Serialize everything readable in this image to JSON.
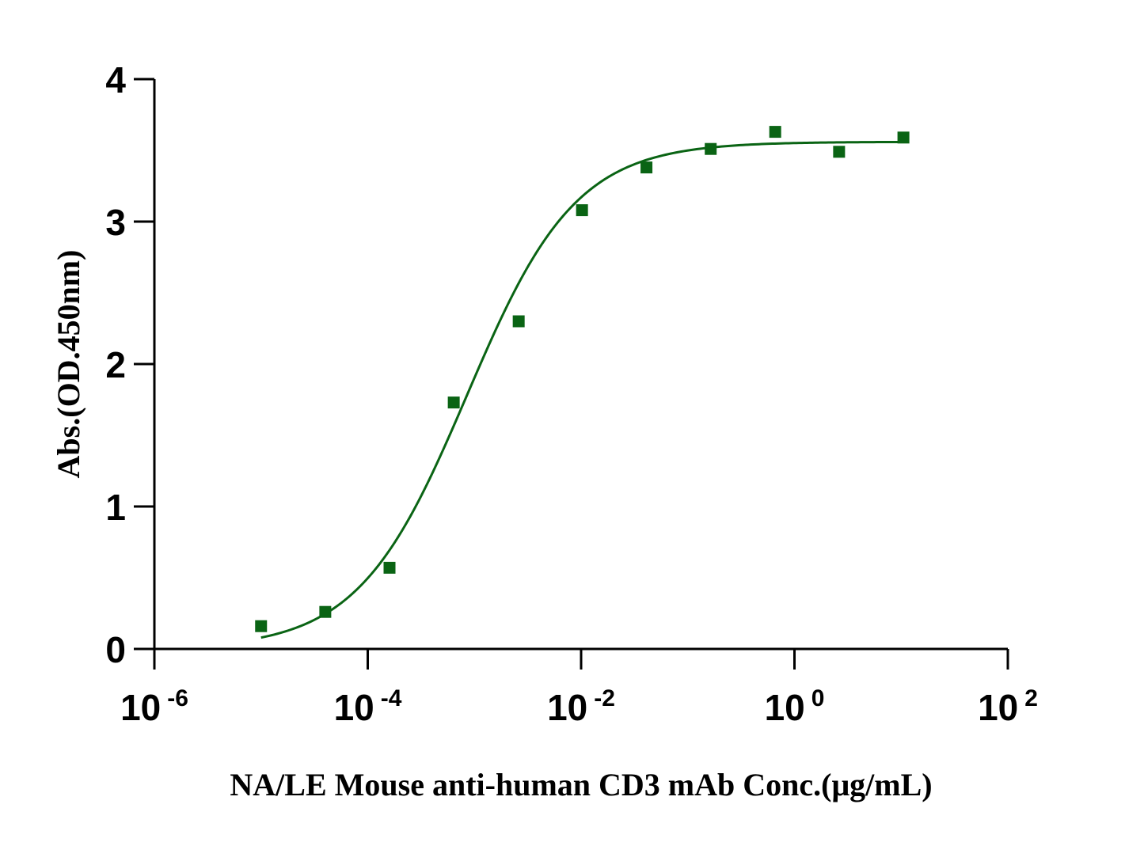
{
  "chart_data": {
    "type": "scatter",
    "title": "",
    "xlabel": "NA/LE Mouse anti-human CD3 mAb Conc.(μg/mL)",
    "ylabel": "Abs.(OD.450nm)",
    "x_scale": "log",
    "xlim": [
      1e-06,
      100
    ],
    "ylim": [
      0,
      4
    ],
    "x_ticks": [
      {
        "base": "10",
        "exp": "-6",
        "value": 1e-06
      },
      {
        "base": "10",
        "exp": "-4",
        "value": 0.0001
      },
      {
        "base": "10",
        "exp": "-2",
        "value": 0.01
      },
      {
        "base": "10",
        "exp": "0",
        "value": 1
      },
      {
        "base": "10",
        "exp": "2",
        "value": 100
      }
    ],
    "y_ticks": [
      "0",
      "1",
      "2",
      "3",
      "4"
    ],
    "grid": false,
    "legend": "none",
    "color": "#0a6414",
    "series": [
      {
        "marker": "square",
        "points": [
          {
            "x": 1e-05,
            "y": 0.16
          },
          {
            "x": 4e-05,
            "y": 0.26
          },
          {
            "x": 0.00016,
            "y": 0.57
          },
          {
            "x": 0.00064,
            "y": 1.73
          },
          {
            "x": 0.0026,
            "y": 2.3
          },
          {
            "x": 0.0102,
            "y": 3.08
          },
          {
            "x": 0.041,
            "y": 3.38
          },
          {
            "x": 0.164,
            "y": 3.51
          },
          {
            "x": 0.66,
            "y": 3.63
          },
          {
            "x": 2.62,
            "y": 3.49
          },
          {
            "x": 10.5,
            "y": 3.59
          }
        ],
        "fit": {
          "model": "4PL",
          "bottom": 0.0,
          "top": 3.56,
          "ec50": 0.00085,
          "hill": 0.85,
          "x_range": [
            1e-05,
            10.5
          ]
        }
      }
    ]
  }
}
